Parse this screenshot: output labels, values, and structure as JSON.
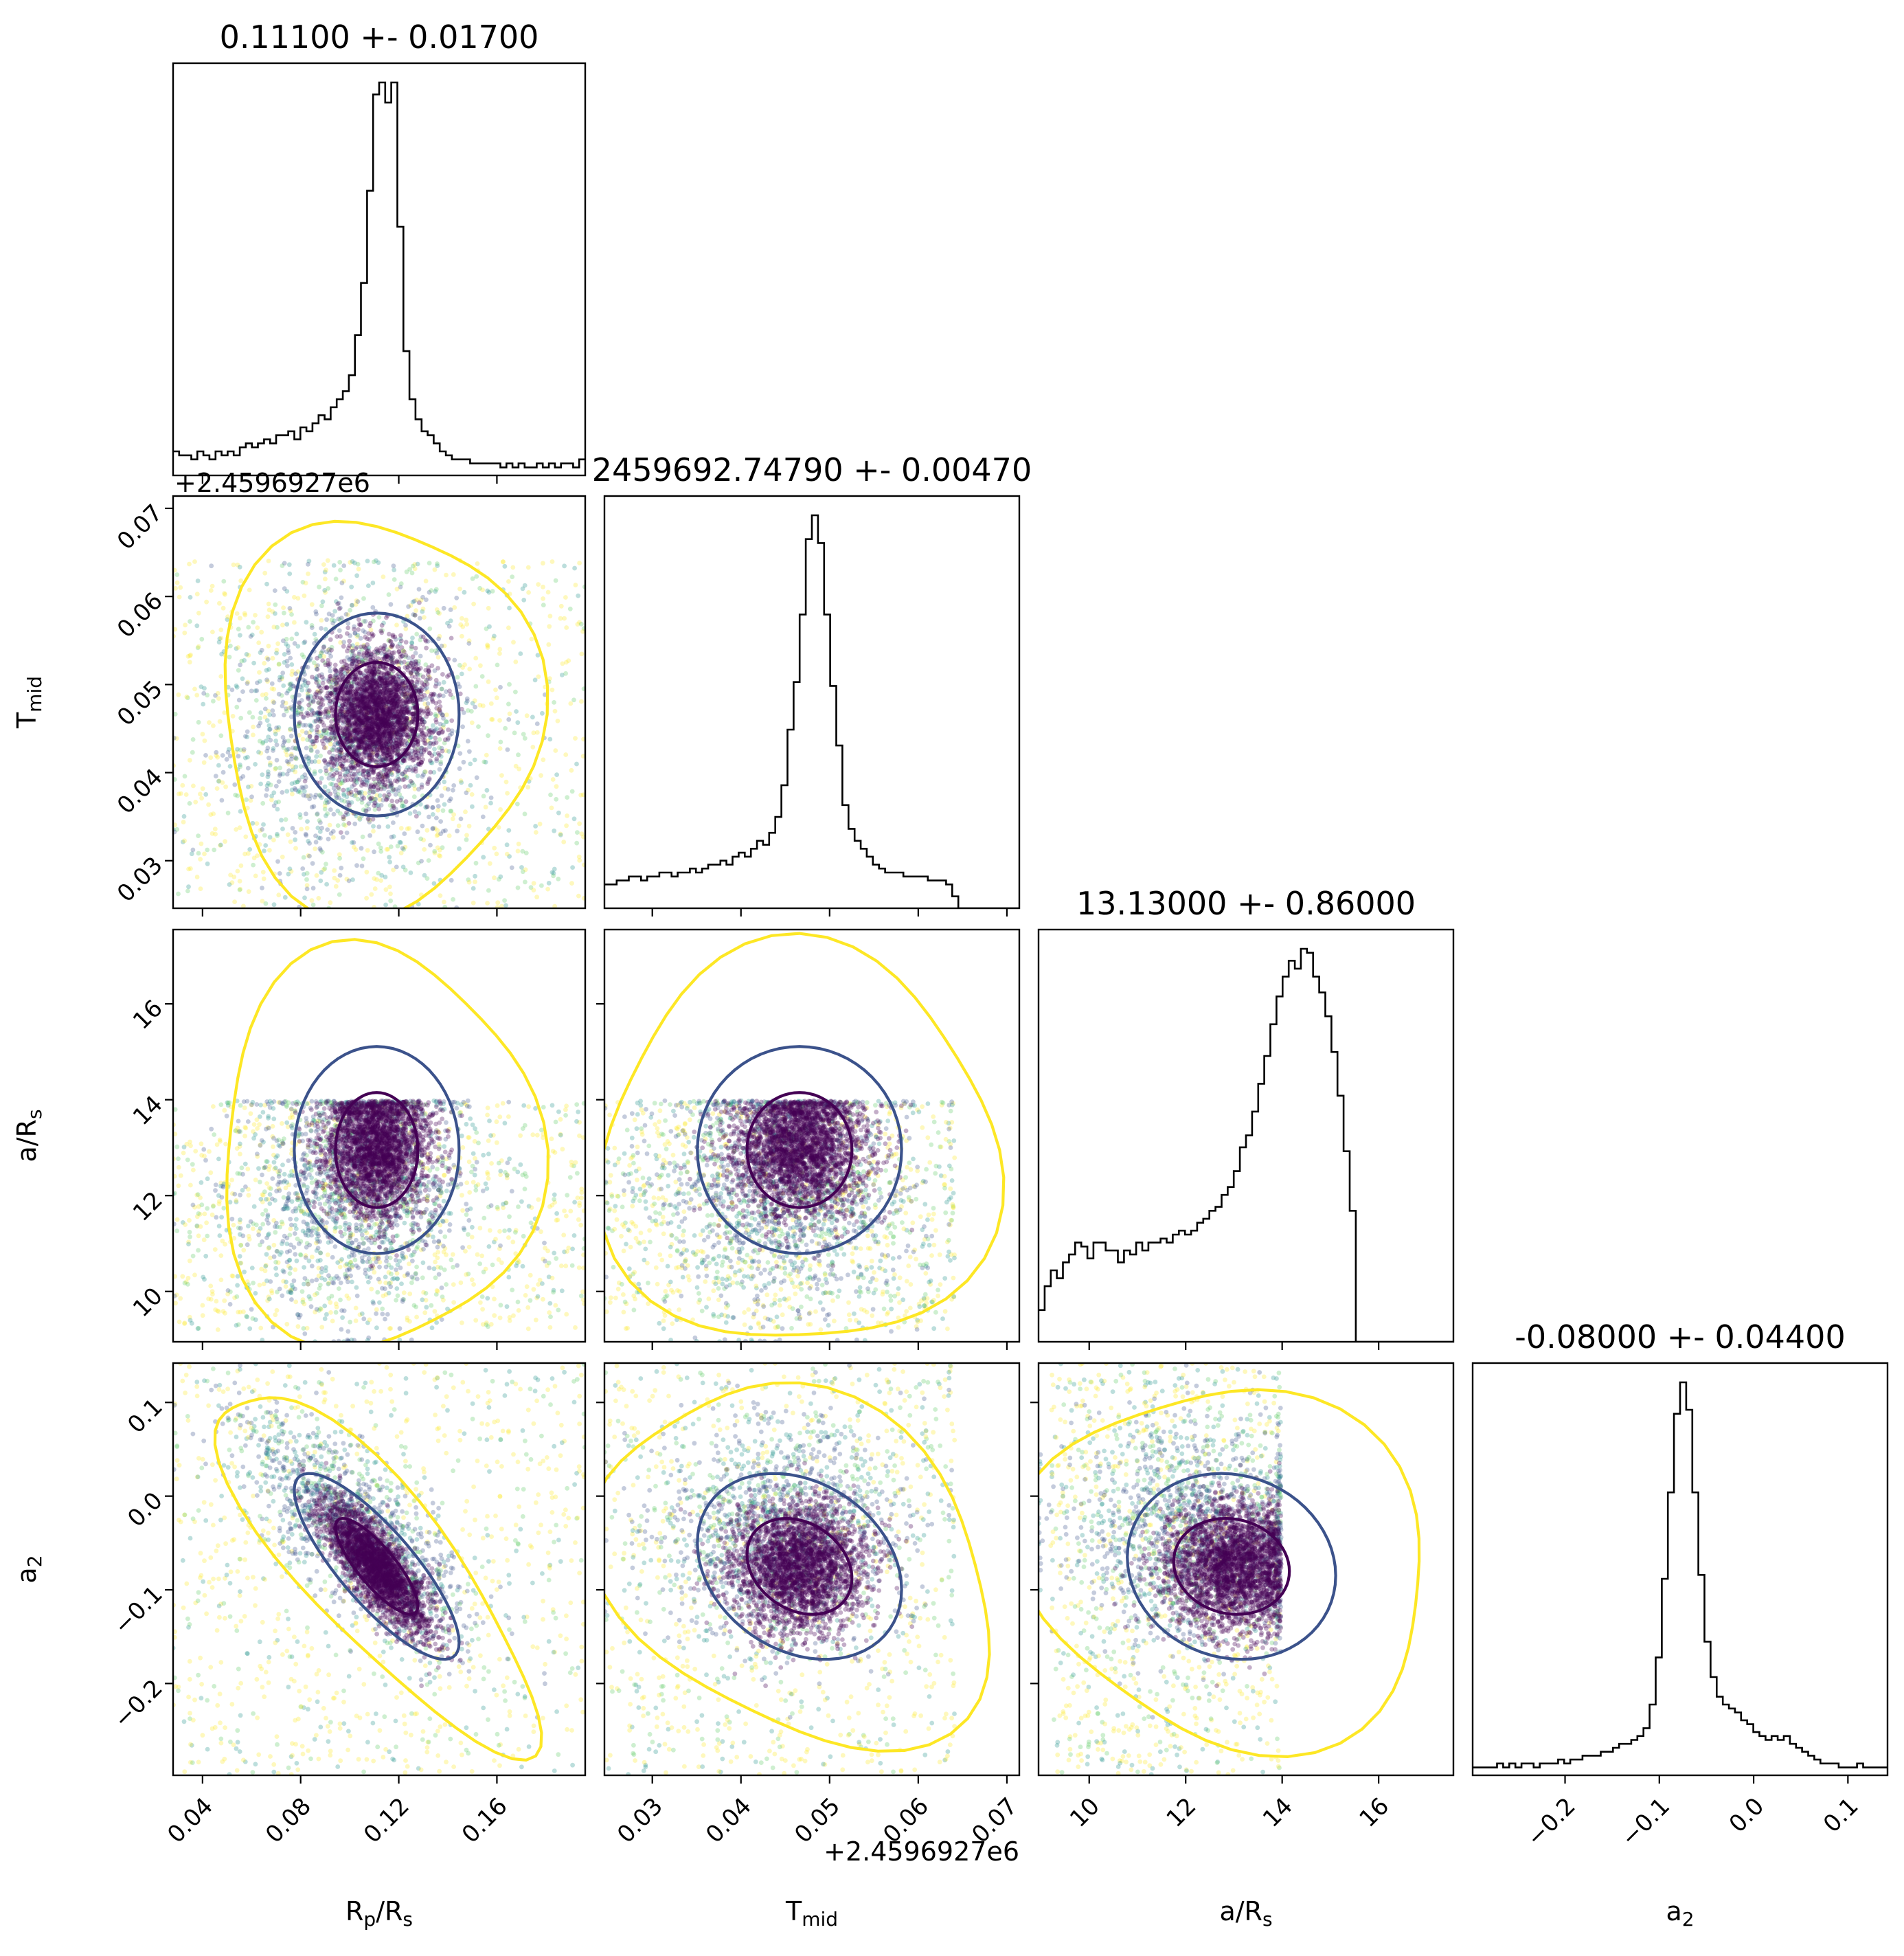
{
  "chart_data": {
    "type": "scatter",
    "subtype": "corner-plot",
    "parameters": [
      {
        "key": "rprs",
        "label": "R",
        "sub": "p",
        "label2": "/R",
        "sub2": "s",
        "range": [
          0.028,
          0.196
        ],
        "ticks": [
          0.04,
          0.08,
          0.12,
          0.16
        ],
        "tick_labels": [
          "0.04",
          "0.08",
          "0.12",
          "0.16"
        ],
        "title": "0.11100 +- 0.01700",
        "center": 0.111,
        "spread": 0.017
      },
      {
        "key": "tmid",
        "label": "T",
        "sub": "mid",
        "label2": "",
        "sub2": "",
        "range": [
          0.0246,
          0.0714
        ],
        "ticks": [
          0.03,
          0.04,
          0.05,
          0.06,
          0.07
        ],
        "tick_labels": [
          "0.03",
          "0.04",
          "0.05",
          "0.06",
          "0.07"
        ],
        "offset_label": "+2.4596927e6",
        "title": "2459692.74790 +- 0.00470",
        "center": 0.0479,
        "spread": 0.0047
      },
      {
        "key": "ars",
        "label": "a/R",
        "sub": "s",
        "label2": "",
        "sub2": "",
        "range": [
          8.95,
          17.55
        ],
        "ticks": [
          10,
          12,
          14,
          16
        ],
        "tick_labels": [
          "10",
          "12",
          "14",
          "16"
        ],
        "title": "13.13000 +- 0.86000",
        "center": 13.13,
        "spread": 0.86
      },
      {
        "key": "a2",
        "label": "a",
        "sub": "2",
        "label2": "",
        "sub2": "",
        "range": [
          -0.298,
          0.142
        ],
        "ticks": [
          -0.2,
          -0.1,
          0.0,
          0.1
        ],
        "tick_labels": [
          "−0.2",
          "−0.1",
          "0.0",
          "0.1"
        ],
        "title": "-0.08000 +- 0.04400",
        "center": -0.08,
        "spread": 0.044
      }
    ],
    "histograms": {
      "rprs": {
        "bin_range": [
          0.028,
          0.196
        ],
        "counts": [
          6,
          5,
          5,
          4,
          6,
          5,
          4,
          6,
          5,
          6,
          5,
          7,
          8,
          7,
          8,
          9,
          8,
          10,
          10,
          11,
          9,
          12,
          11,
          13,
          15,
          14,
          17,
          19,
          21,
          25,
          35,
          48,
          71,
          95,
          98,
          93,
          98,
          62,
          31,
          19,
          14,
          11,
          10,
          8,
          6,
          5,
          4,
          4,
          4,
          3,
          3,
          3,
          3,
          3,
          2,
          3,
          2,
          3,
          2,
          2,
          3,
          2,
          3,
          2,
          3,
          3,
          2,
          4
        ]
      },
      "tmid": {
        "bin_range": [
          0.0246,
          0.0714
        ],
        "counts": [
          6,
          6,
          7,
          7,
          8,
          8,
          7,
          8,
          8,
          9,
          9,
          8,
          9,
          9,
          10,
          9,
          10,
          11,
          11,
          12,
          11,
          13,
          14,
          13,
          15,
          17,
          16,
          19,
          23,
          31,
          45,
          57,
          74,
          93,
          99,
          92,
          74,
          56,
          41,
          26,
          20,
          17,
          15,
          13,
          11,
          10,
          9,
          9,
          9,
          8,
          8,
          8,
          8,
          7,
          7,
          7,
          6,
          3,
          0,
          0,
          0,
          0,
          0,
          0,
          0,
          0,
          0,
          0
        ]
      },
      "ars": {
        "bin_range": [
          8.95,
          17.55
        ],
        "counts": [
          8,
          14,
          18,
          16,
          20,
          22,
          25,
          24,
          21,
          25,
          25,
          23,
          23,
          20,
          23,
          22,
          25,
          23,
          25,
          25,
          26,
          25,
          27,
          28,
          27,
          28,
          30,
          31,
          33,
          34,
          37,
          39,
          43,
          49,
          52,
          58,
          65,
          72,
          80,
          87,
          92,
          96,
          94,
          99,
          98,
          92,
          88,
          82,
          73,
          62,
          48,
          33,
          0,
          0,
          0,
          0,
          0,
          0,
          0,
          0,
          0,
          0,
          0,
          0,
          0,
          0,
          0,
          0
        ]
      },
      "a2": {
        "bin_range": [
          -0.298,
          0.142
        ],
        "counts": [
          2,
          2,
          2,
          2,
          3,
          2,
          3,
          2,
          3,
          3,
          2,
          3,
          3,
          3,
          4,
          3,
          4,
          4,
          5,
          5,
          5,
          6,
          6,
          7,
          8,
          8,
          9,
          10,
          12,
          18,
          30,
          50,
          72,
          92,
          100,
          93,
          72,
          51,
          34,
          25,
          20,
          18,
          17,
          16,
          14,
          13,
          11,
          10,
          9,
          10,
          9,
          10,
          8,
          7,
          6,
          5,
          4,
          3,
          3,
          3,
          2,
          2,
          2,
          3,
          2,
          2,
          2,
          2
        ]
      }
    }
  }
}
